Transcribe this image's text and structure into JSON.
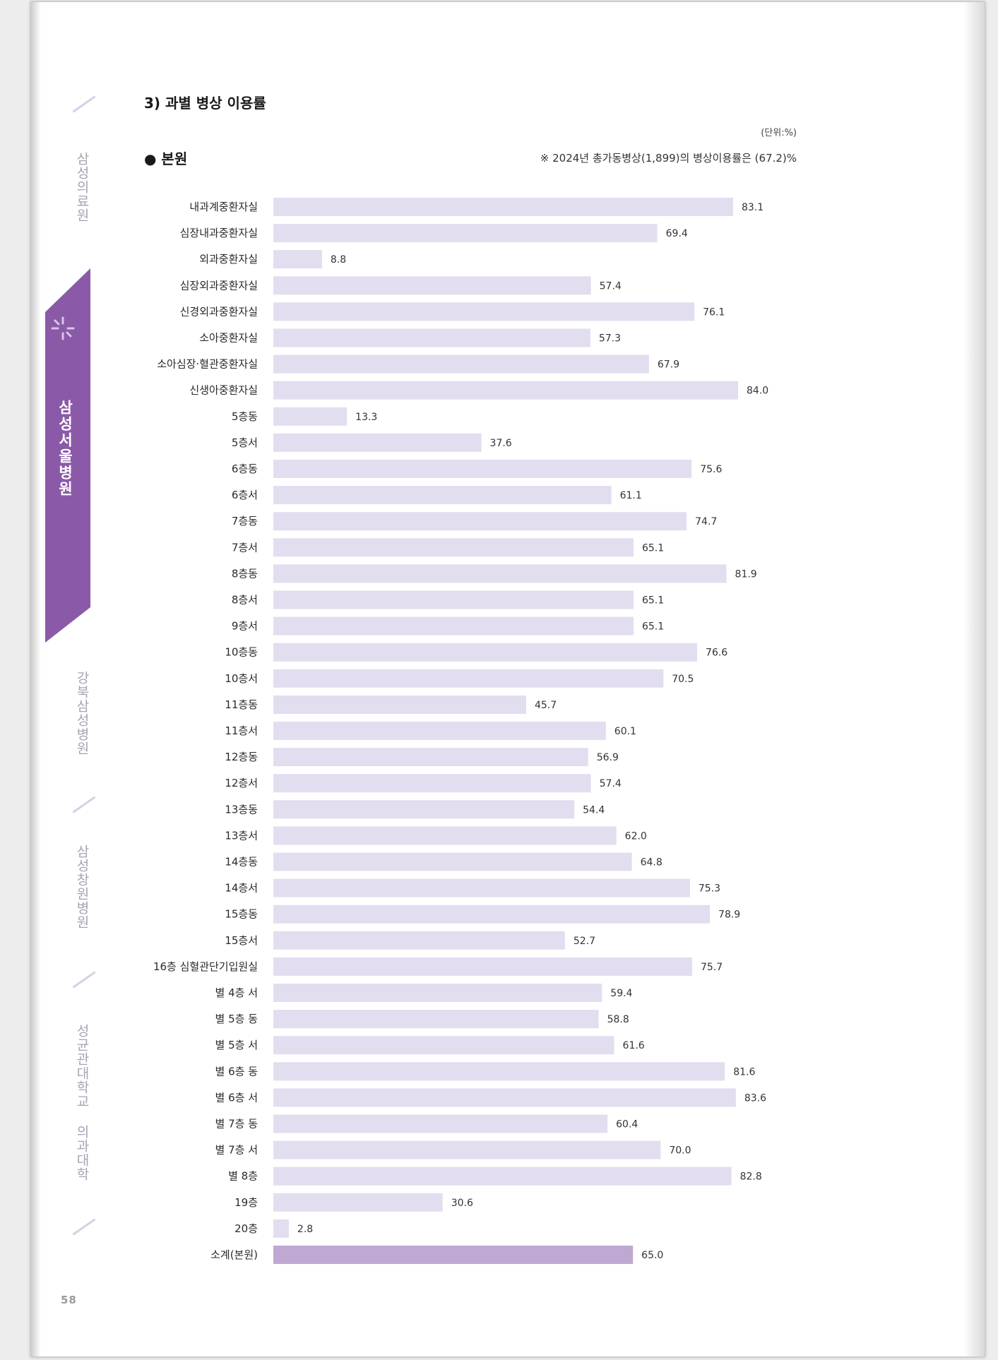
{
  "page": {
    "number": "58",
    "section_title": "3) 과별 병상 이용률",
    "unit": "(단위:%)",
    "subtitle": "● 본원",
    "note": "※ 2024년 총가동병상(1,899)의 병상이용률은 (67.2)%"
  },
  "side_tabs": {
    "tab1": "삼성의료원",
    "tab2": "삼성서울병원",
    "tab3": "강북삼성병원",
    "tab4": "삼성창원병원",
    "tab5": "성균관대학교 의과대학"
  },
  "colors": {
    "bar": "#e3ddf0",
    "subtotal_bar": "#bfa8d2",
    "accent": "#8a5aa8"
  },
  "chart_data": {
    "type": "bar",
    "orientation": "horizontal",
    "categories": [
      "내과계중환자실",
      "심장내과중환자실",
      "외과중환자실",
      "심장외과중환자실",
      "신경외과중환자실",
      "소아중환자실",
      "소아심장·혈관중환자실",
      "신생아중환자실",
      "5층동",
      "5층서",
      "6층동",
      "6층서",
      "7층동",
      "7층서",
      "8층동",
      "8층서",
      "9층서",
      "10층동",
      "10층서",
      "11층동",
      "11층서",
      "12층동",
      "12층서",
      "13층동",
      "13층서",
      "14층동",
      "14층서",
      "15층동",
      "15층서",
      "16층 심혈관단기입원실",
      "별 4층 서",
      "별 5층 동",
      "별 5층 서",
      "별 6층 동",
      "별 6층 서",
      "별 7층 동",
      "별 7층 서",
      "별 8층",
      "19층",
      "20층",
      "소계(본원)"
    ],
    "values": [
      83.1,
      69.4,
      8.8,
      57.4,
      76.1,
      57.3,
      67.9,
      84.0,
      13.3,
      37.6,
      75.6,
      61.1,
      74.7,
      65.1,
      81.9,
      65.1,
      65.1,
      76.6,
      70.5,
      45.7,
      60.1,
      56.9,
      57.4,
      54.4,
      62.0,
      64.8,
      75.3,
      78.9,
      52.7,
      75.7,
      59.4,
      58.8,
      61.6,
      81.6,
      83.6,
      60.4,
      70.0,
      82.8,
      30.6,
      2.8,
      65.0
    ],
    "value_labels": [
      "83.1",
      "69.4",
      "8.8",
      "57.4",
      "76.1",
      "57.3",
      "67.9",
      "84.0",
      "13.3",
      "37.6",
      "75.6",
      "61.1",
      "74.7",
      "65.1",
      "81.9",
      "65.1",
      "65.1",
      "76.6",
      "70.5",
      "45.7",
      "60.1",
      "56.9",
      "57.4",
      "54.4",
      "62.0",
      "64.8",
      "75.3",
      "78.9",
      "52.7",
      "75.7",
      "59.4",
      "58.8",
      "61.6",
      "81.6",
      "83.6",
      "60.4",
      "70.0",
      "82.8",
      "30.6",
      "2.8",
      "65.0"
    ],
    "highlight_last": true,
    "xlim": [
      0,
      84
    ],
    "grid": false,
    "legend": "none"
  }
}
